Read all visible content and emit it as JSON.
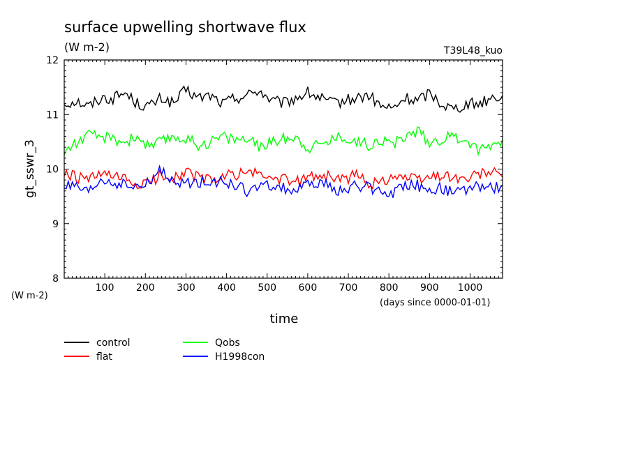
{
  "chart_data": {
    "type": "line",
    "title": "surface upwelling shortwave flux",
    "subtitle": "(W m-2)",
    "run_label": "T39L48_kuo",
    "xlabel": "time",
    "x_units": "(days since 0000-01-01)",
    "ylabel": "gt_sswr_3",
    "y_units": "(W m-2)",
    "xlim": [
      0,
      1080
    ],
    "ylim": [
      8,
      12
    ],
    "x_ticks": [
      100,
      200,
      300,
      400,
      500,
      600,
      700,
      800,
      900,
      1000
    ],
    "y_ticks": [
      8,
      9,
      10,
      11,
      12
    ],
    "grid": false,
    "legend_position": "bottom-left",
    "series": [
      {
        "name": "control",
        "color": "#000000",
        "x": [
          0,
          30,
          60,
          90,
          120,
          150,
          180,
          210,
          240,
          270,
          300,
          330,
          360,
          390,
          420,
          450,
          480,
          510,
          540,
          570,
          600,
          630,
          660,
          690,
          720,
          750,
          780,
          810,
          840,
          870,
          900,
          930,
          960,
          990,
          1020,
          1050,
          1080
        ],
        "values": [
          11.2,
          11.25,
          11.15,
          11.3,
          11.3,
          11.4,
          11.2,
          11.15,
          11.3,
          11.2,
          11.45,
          11.3,
          11.35,
          11.2,
          11.3,
          11.35,
          11.45,
          11.25,
          11.2,
          11.3,
          11.4,
          11.3,
          11.2,
          11.25,
          11.3,
          11.35,
          11.15,
          11.1,
          11.3,
          11.25,
          11.4,
          11.2,
          11.1,
          11.2,
          11.2,
          11.3,
          11.35
        ]
      },
      {
        "name": "flat",
        "color": "#ff0000",
        "x": [
          0,
          30,
          60,
          90,
          120,
          150,
          180,
          210,
          240,
          270,
          300,
          330,
          360,
          390,
          420,
          450,
          480,
          510,
          540,
          570,
          600,
          630,
          660,
          690,
          720,
          750,
          780,
          810,
          840,
          870,
          900,
          930,
          960,
          990,
          1020,
          1050,
          1080
        ],
        "values": [
          9.9,
          9.85,
          9.8,
          9.9,
          9.85,
          9.8,
          9.7,
          9.75,
          9.9,
          9.85,
          9.95,
          9.85,
          9.8,
          9.85,
          9.9,
          9.95,
          9.9,
          9.85,
          9.8,
          9.75,
          9.85,
          9.9,
          9.85,
          9.8,
          9.9,
          9.75,
          9.75,
          9.9,
          9.85,
          9.8,
          9.85,
          9.9,
          9.85,
          9.8,
          9.9,
          9.95,
          9.85
        ]
      },
      {
        "name": "Qobs",
        "color": "#00ff00",
        "x": [
          0,
          30,
          60,
          90,
          120,
          150,
          180,
          210,
          240,
          270,
          300,
          330,
          360,
          390,
          420,
          450,
          480,
          510,
          540,
          570,
          600,
          630,
          660,
          690,
          720,
          750,
          780,
          810,
          840,
          870,
          900,
          930,
          960,
          990,
          1020,
          1050,
          1080
        ],
        "values": [
          10.3,
          10.5,
          10.6,
          10.6,
          10.55,
          10.5,
          10.6,
          10.4,
          10.5,
          10.6,
          10.55,
          10.45,
          10.5,
          10.6,
          10.55,
          10.55,
          10.4,
          10.5,
          10.55,
          10.6,
          10.4,
          10.45,
          10.55,
          10.6,
          10.5,
          10.45,
          10.55,
          10.45,
          10.6,
          10.7,
          10.5,
          10.55,
          10.6,
          10.55,
          10.35,
          10.45,
          10.55
        ]
      },
      {
        "name": "H1998con",
        "color": "#0000ff",
        "x": [
          0,
          30,
          60,
          90,
          120,
          150,
          180,
          210,
          240,
          270,
          300,
          330,
          360,
          390,
          420,
          450,
          480,
          510,
          540,
          570,
          600,
          630,
          660,
          690,
          720,
          750,
          780,
          810,
          840,
          870,
          900,
          930,
          960,
          990,
          1020,
          1050,
          1080
        ],
        "values": [
          9.7,
          9.65,
          9.55,
          9.8,
          9.75,
          9.7,
          9.65,
          9.75,
          10.0,
          9.7,
          9.75,
          9.75,
          9.8,
          9.75,
          9.7,
          9.6,
          9.65,
          9.7,
          9.65,
          9.6,
          9.7,
          9.75,
          9.65,
          9.6,
          9.7,
          9.65,
          9.6,
          9.55,
          9.75,
          9.7,
          9.6,
          9.65,
          9.55,
          9.6,
          9.7,
          9.65,
          9.7
        ]
      }
    ]
  }
}
